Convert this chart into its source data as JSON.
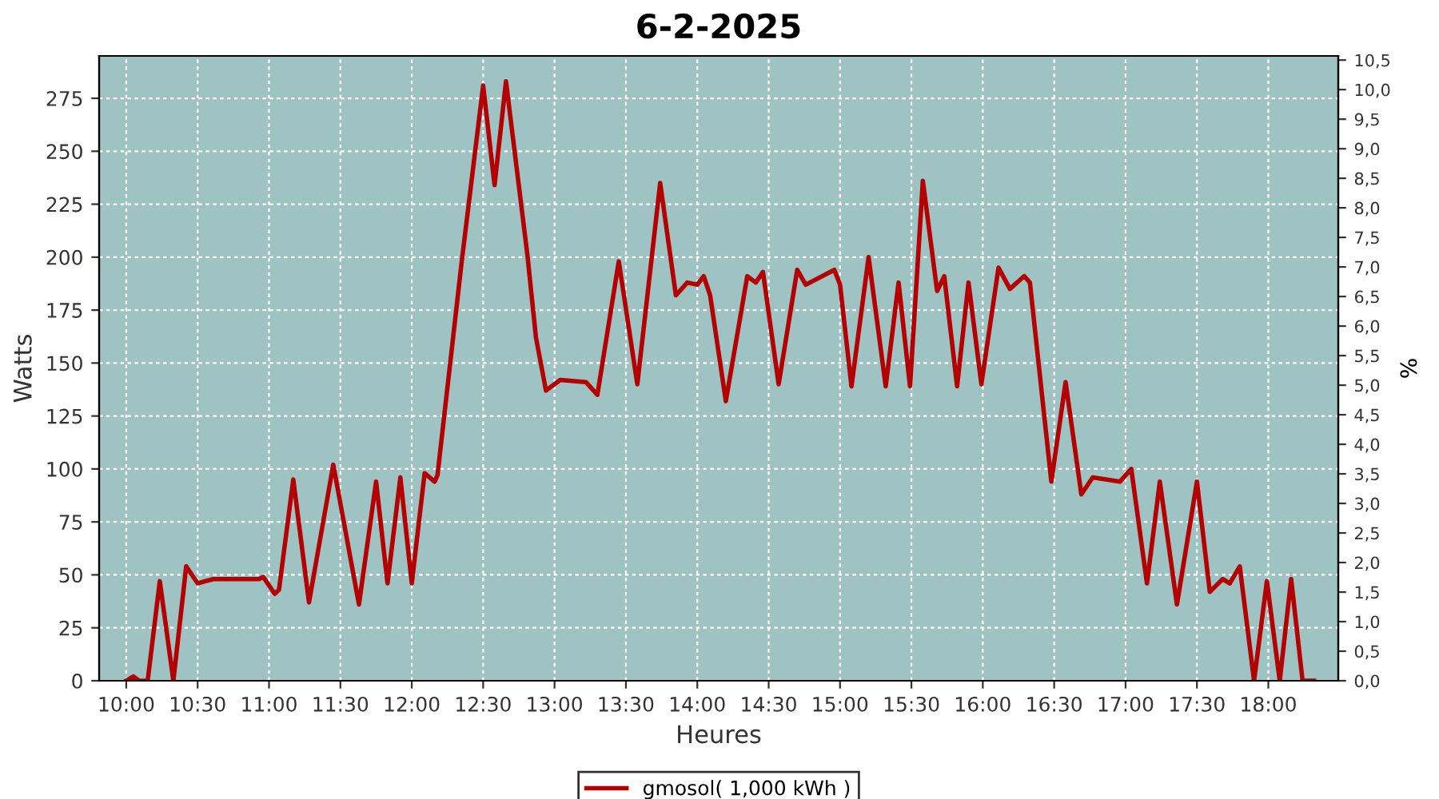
{
  "chart_data": {
    "type": "line",
    "title": "6-2-2025",
    "xlabel": "Heures",
    "ylabel": "Watts",
    "y2label": "%",
    "x": [
      10.0,
      10.05,
      10.09,
      10.15,
      10.235,
      10.33,
      10.42,
      10.5,
      10.61,
      10.93,
      10.96,
      11.04,
      11.07,
      11.17,
      11.28,
      11.45,
      11.63,
      11.75,
      11.83,
      11.92,
      12.0,
      12.09,
      12.16,
      12.18,
      12.35,
      12.5,
      12.58,
      12.66,
      12.81,
      12.87,
      12.94,
      13.04,
      13.22,
      13.3,
      13.45,
      13.58,
      13.74,
      13.85,
      13.93,
      14.0,
      14.045,
      14.09,
      14.2,
      14.35,
      14.41,
      14.46,
      14.57,
      14.7,
      14.76,
      14.96,
      15.0,
      15.08,
      15.2,
      15.32,
      15.41,
      15.49,
      15.58,
      15.68,
      15.73,
      15.82,
      15.9,
      15.99,
      16.11,
      16.19,
      16.29,
      16.33,
      16.48,
      16.58,
      16.69,
      16.77,
      16.96,
      17.04,
      17.15,
      17.24,
      17.36,
      17.5,
      17.59,
      17.68,
      17.73,
      17.8,
      17.9,
      17.99,
      18.08,
      18.16,
      18.24,
      18.32
    ],
    "series": [
      {
        "name": "gmosol( 1,000 kWh )",
        "color": "#b30000",
        "values": [
          0,
          2,
          0,
          0,
          47,
          0,
          54,
          46,
          48,
          48,
          49,
          41,
          43,
          95,
          37,
          102,
          36,
          94,
          46,
          96,
          46,
          98,
          94,
          97,
          198,
          281,
          234,
          283,
          201,
          162,
          137,
          142,
          141,
          135,
          198,
          140,
          235,
          182,
          188,
          187,
          191,
          182,
          132,
          191,
          188,
          193,
          140,
          194,
          187,
          194,
          187,
          139,
          200,
          139,
          188,
          139,
          236,
          184,
          191,
          139,
          188,
          140,
          195,
          185,
          191,
          188,
          94,
          141,
          88,
          96,
          94,
          100,
          46,
          94,
          36,
          94,
          42,
          48,
          46,
          54,
          0,
          47,
          0,
          48,
          0,
          0
        ]
      }
    ],
    "xlim": [
      9.81,
      18.49
    ],
    "xticks": [
      {
        "value": 10,
        "label": "10:00"
      },
      {
        "value": 10.5,
        "label": "10:30"
      },
      {
        "value": 11,
        "label": "11:00"
      },
      {
        "value": 11.5,
        "label": "11:30"
      },
      {
        "value": 12,
        "label": "12:00"
      },
      {
        "value": 12.5,
        "label": "12:30"
      },
      {
        "value": 13,
        "label": "13:00"
      },
      {
        "value": 13.5,
        "label": "13:30"
      },
      {
        "value": 14,
        "label": "14:00"
      },
      {
        "value": 14.5,
        "label": "14:30"
      },
      {
        "value": 15,
        "label": "15:00"
      },
      {
        "value": 15.5,
        "label": "15:30"
      },
      {
        "value": 16,
        "label": "16:00"
      },
      {
        "value": 16.5,
        "label": "16:30"
      },
      {
        "value": 17,
        "label": "17:00"
      },
      {
        "value": 17.5,
        "label": "17:30"
      },
      {
        "value": 18,
        "label": "18:00"
      }
    ],
    "ylim": [
      0,
      295
    ],
    "yticks": [
      0,
      25,
      50,
      75,
      100,
      125,
      150,
      175,
      200,
      225,
      250,
      275
    ],
    "y2lim": [
      0,
      10.57
    ],
    "y2ticks": [
      {
        "value": 0,
        "label": "0,0"
      },
      {
        "value": 0.5,
        "label": "0,5"
      },
      {
        "value": 1,
        "label": "1,0"
      },
      {
        "value": 1.5,
        "label": "1,5"
      },
      {
        "value": 2,
        "label": "2,0"
      },
      {
        "value": 2.5,
        "label": "2,5"
      },
      {
        "value": 3,
        "label": "3,0"
      },
      {
        "value": 3.5,
        "label": "3,5"
      },
      {
        "value": 4,
        "label": "4,0"
      },
      {
        "value": 4.5,
        "label": "4,5"
      },
      {
        "value": 5,
        "label": "5,0"
      },
      {
        "value": 5.5,
        "label": "5,5"
      },
      {
        "value": 6,
        "label": "6,0"
      },
      {
        "value": 6.5,
        "label": "6,5"
      },
      {
        "value": 7,
        "label": "7,0"
      },
      {
        "value": 7.5,
        "label": "7,5"
      },
      {
        "value": 8,
        "label": "8,0"
      },
      {
        "value": 8.5,
        "label": "8,5"
      },
      {
        "value": 9,
        "label": "9,0"
      },
      {
        "value": 9.5,
        "label": "9,5"
      },
      {
        "value": 10,
        "label": "10,0"
      },
      {
        "value": 10.5,
        "label": "10,5"
      }
    ],
    "grid": true,
    "legend": "bottom",
    "line_style": "solid"
  }
}
